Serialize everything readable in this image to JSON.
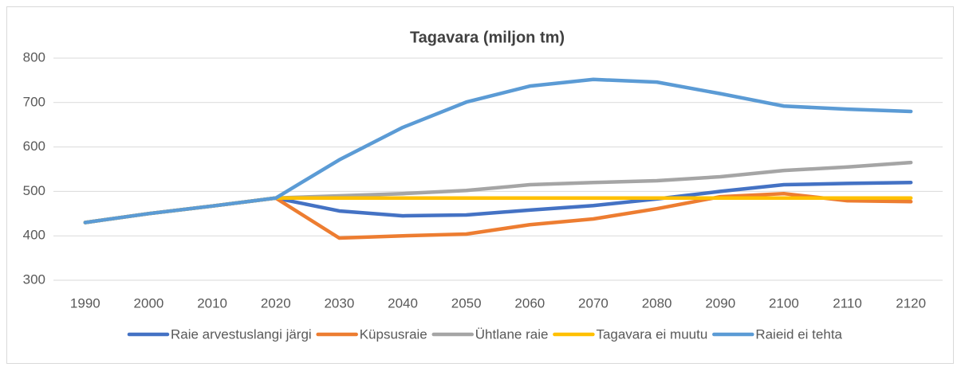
{
  "chart_data": {
    "type": "line",
    "title": "Tagavara (miljon tm)",
    "categories": [
      "1990",
      "2000",
      "2010",
      "2020",
      "2030",
      "2040",
      "2050",
      "2060",
      "2070",
      "2080",
      "2090",
      "2100",
      "2110",
      "2120"
    ],
    "ylim": [
      300,
      800
    ],
    "yticks": [
      300,
      400,
      500,
      600,
      700,
      800
    ],
    "grid": true,
    "legend": "bottom",
    "series": [
      {
        "name": "Raie arvestuslangi järgi",
        "color": "#4472c4",
        "values": [
          430,
          450,
          467,
          485,
          456,
          445,
          447,
          458,
          468,
          483,
          500,
          515,
          518,
          520
        ]
      },
      {
        "name": "Küpsusraie",
        "color": "#ed7d31",
        "values": [
          430,
          450,
          467,
          485,
          395,
          400,
          404,
          425,
          438,
          461,
          488,
          495,
          479,
          477
        ]
      },
      {
        "name": "Ühtlane raie",
        "color": "#a5a5a5",
        "values": [
          430,
          450,
          467,
          485,
          490,
          495,
          502,
          515,
          520,
          524,
          533,
          547,
          555,
          565
        ]
      },
      {
        "name": "Tagavara ei muutu",
        "color": "#ffc000",
        "values": [
          430,
          450,
          467,
          485,
          485,
          485,
          485,
          485,
          485,
          485,
          485,
          485,
          485,
          485
        ]
      },
      {
        "name": "Raieid ei tehta",
        "color": "#5b9bd5",
        "values": [
          430,
          450,
          467,
          485,
          571,
          644,
          701,
          737,
          752,
          746,
          720,
          692,
          685,
          680
        ]
      }
    ]
  }
}
